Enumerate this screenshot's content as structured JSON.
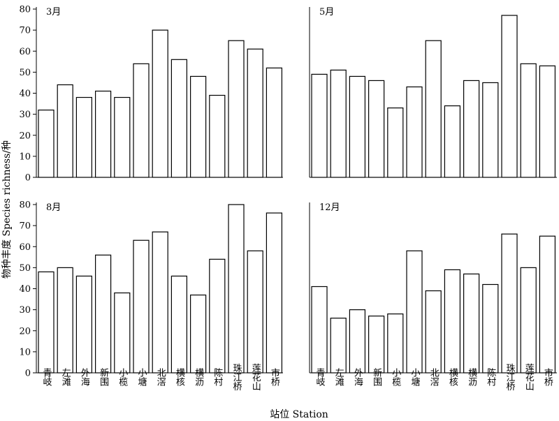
{
  "chart_data": {
    "type": "bar",
    "xlabel": "站位 Station",
    "ylabel": "物种丰度 Species richness/种",
    "ylim": [
      0,
      80
    ],
    "y_ticks": [
      0,
      10,
      20,
      30,
      40,
      50,
      60,
      70,
      80
    ],
    "grid": false,
    "categories": [
      "青岐",
      "左滩",
      "外海",
      "新围",
      "小榄",
      "小塘",
      "北滘",
      "横核",
      "横沥",
      "陈村",
      "珠江桥",
      "莲花山",
      "市桥"
    ],
    "panels": [
      {
        "title": "3月",
        "values": [
          32,
          44,
          38,
          41,
          38,
          54,
          70,
          56,
          48,
          39,
          65,
          61,
          52
        ]
      },
      {
        "title": "5月",
        "values": [
          49,
          51,
          48,
          46,
          33,
          43,
          65,
          34,
          46,
          45,
          77,
          54,
          53
        ]
      },
      {
        "title": "8月",
        "values": [
          48,
          50,
          46,
          56,
          38,
          63,
          67,
          46,
          37,
          54,
          80,
          58,
          76
        ]
      },
      {
        "title": "12月",
        "values": [
          41,
          26,
          30,
          27,
          28,
          58,
          39,
          49,
          47,
          42,
          66,
          50,
          65
        ]
      }
    ]
  }
}
